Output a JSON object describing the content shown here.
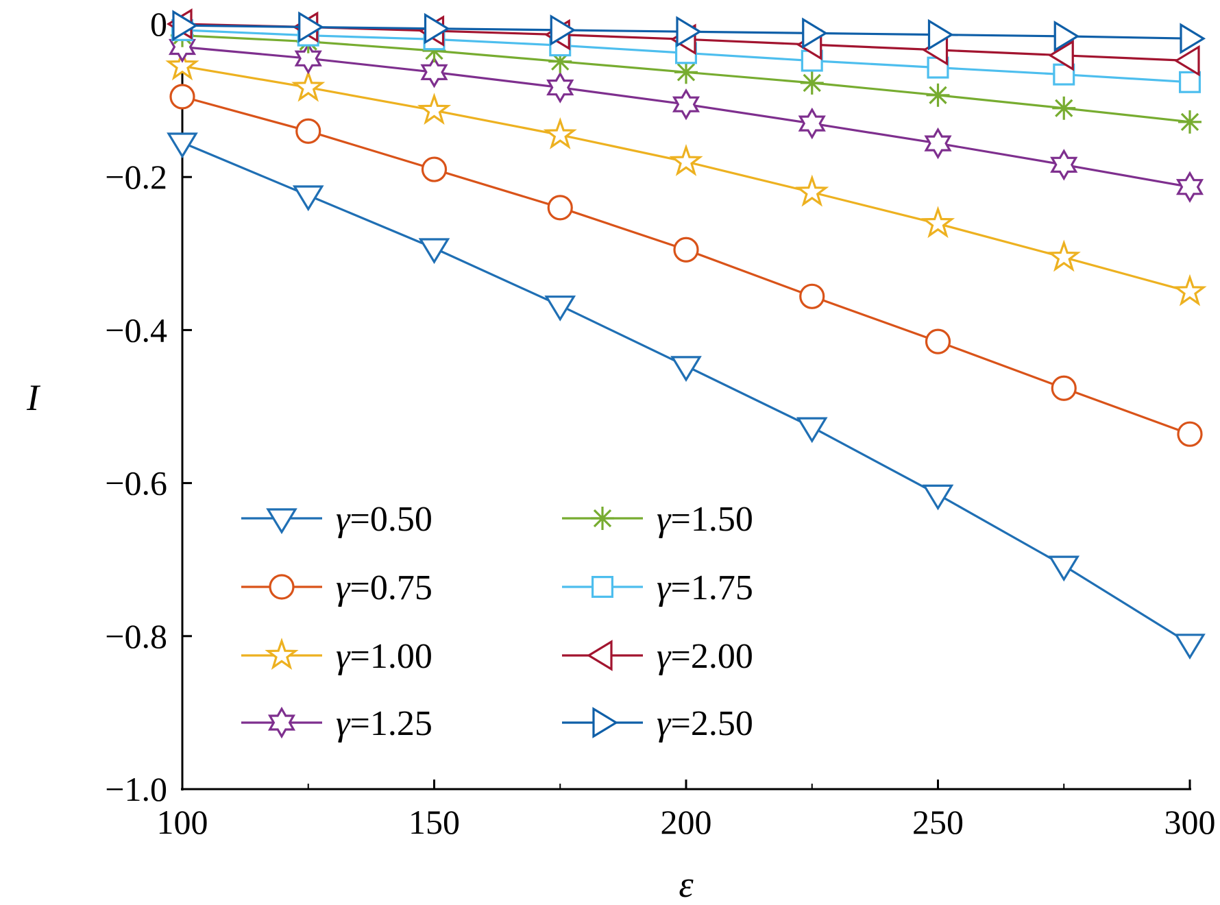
{
  "chart_data": {
    "type": "line",
    "xlabel": "ε",
    "ylabel": "I",
    "xlim": [
      100,
      300
    ],
    "ylim": [
      -1.0,
      0
    ],
    "x": [
      100,
      125,
      150,
      175,
      200,
      225,
      250,
      275,
      300
    ],
    "xticks": [
      "100",
      "150",
      "200",
      "250",
      "300"
    ],
    "yticks": [
      "0",
      "−0.2",
      "−0.4",
      "−0.6",
      "−0.8",
      "−1.0"
    ],
    "grid": false,
    "legend_placement": "lower-left, two columns",
    "series": [
      {
        "name": "0.50",
        "color": "#1f6fb4",
        "marker": "triangle-down",
        "values": [
          -0.155,
          -0.224,
          -0.293,
          -0.368,
          -0.447,
          -0.527,
          -0.615,
          -0.708,
          -0.81
        ]
      },
      {
        "name": "0.75",
        "color": "#d95319",
        "marker": "circle",
        "values": [
          -0.095,
          -0.14,
          -0.19,
          -0.24,
          -0.295,
          -0.356,
          -0.415,
          -0.476,
          -0.536
        ]
      },
      {
        "name": "1.00",
        "color": "#edb120",
        "marker": "star5",
        "values": [
          -0.055,
          -0.083,
          -0.113,
          -0.145,
          -0.18,
          -0.22,
          -0.261,
          -0.305,
          -0.35
        ]
      },
      {
        "name": "1.25",
        "color": "#7e2f8e",
        "marker": "star6",
        "values": [
          -0.03,
          -0.045,
          -0.063,
          -0.083,
          -0.105,
          -0.13,
          -0.156,
          -0.184,
          -0.213
        ]
      },
      {
        "name": "1.50",
        "color": "#77ac30",
        "marker": "asterisk",
        "values": [
          -0.015,
          -0.023,
          -0.035,
          -0.049,
          -0.063,
          -0.077,
          -0.093,
          -0.11,
          -0.128
        ]
      },
      {
        "name": "1.75",
        "color": "#4dbeee",
        "marker": "square",
        "values": [
          -0.008,
          -0.015,
          -0.02,
          -0.028,
          -0.038,
          -0.048,
          -0.057,
          -0.066,
          -0.076
        ]
      },
      {
        "name": "2.00",
        "color": "#a2142f",
        "marker": "triangle-left",
        "values": [
          0.0,
          -0.004,
          -0.009,
          -0.014,
          -0.02,
          -0.027,
          -0.034,
          -0.041,
          -0.048
        ]
      },
      {
        "name": "2.50",
        "color": "#0f5fa8",
        "marker": "triangle-right",
        "values": [
          -0.002,
          -0.004,
          -0.006,
          -0.008,
          -0.01,
          -0.012,
          -0.014,
          -0.016,
          -0.019
        ]
      }
    ]
  },
  "legend": {
    "prefix": "γ",
    "equals": "="
  }
}
